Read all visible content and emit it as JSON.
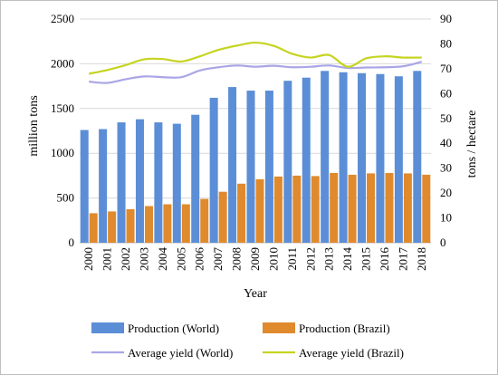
{
  "chart_data": {
    "type": "bar",
    "categories": [
      "2000",
      "2001",
      "2002",
      "2003",
      "2004",
      "2005",
      "2006",
      "2007",
      "2008",
      "2009",
      "2010",
      "2011",
      "2012",
      "2013",
      "2014",
      "2015",
      "2016",
      "2017",
      "2018"
    ],
    "series": [
      {
        "name": "Production (World)",
        "kind": "bar",
        "axis": "left",
        "color": "#5B8ED6",
        "values": [
          1260,
          1270,
          1345,
          1380,
          1345,
          1330,
          1430,
          1620,
          1740,
          1700,
          1700,
          1810,
          1845,
          1920,
          1905,
          1895,
          1885,
          1860,
          1920
        ]
      },
      {
        "name": "Production (Brazil)",
        "kind": "bar",
        "axis": "left",
        "color": "#E08A2E",
        "values": [
          330,
          350,
          375,
          410,
          430,
          430,
          490,
          570,
          660,
          710,
          740,
          750,
          745,
          780,
          760,
          775,
          780,
          775,
          760
        ]
      },
      {
        "name": "Average yield (World)",
        "kind": "line",
        "axis": "right",
        "color": "#A9A6E6",
        "values": [
          64.8,
          64.3,
          65.8,
          66.9,
          66.6,
          66.6,
          69.3,
          70.6,
          71.3,
          70.8,
          71.2,
          70.6,
          70.8,
          71.3,
          70.3,
          70.5,
          70.6,
          71.0,
          72.8
        ]
      },
      {
        "name": "Average yield (Brazil)",
        "kind": "line",
        "axis": "right",
        "color": "#C6D420",
        "values": [
          68.0,
          69.5,
          71.5,
          73.8,
          73.9,
          72.9,
          75.0,
          77.6,
          79.3,
          80.5,
          79.2,
          76.0,
          74.5,
          75.5,
          70.8,
          74.2,
          75.0,
          74.5,
          74.5
        ]
      }
    ],
    "xlabel": "Year",
    "ylabel_left": "million tons",
    "ylabel_right": "tons / hectare",
    "ylim_left": [
      0,
      2500
    ],
    "ylim_right": [
      0,
      90
    ],
    "yticks_left": [
      "0",
      "500",
      "1000",
      "1500",
      "2000",
      "2500"
    ],
    "yticks_right": [
      "0",
      "10",
      "20",
      "30",
      "40",
      "50",
      "60",
      "70",
      "80",
      "90"
    ],
    "grid": true,
    "legend_position": "bottom"
  }
}
